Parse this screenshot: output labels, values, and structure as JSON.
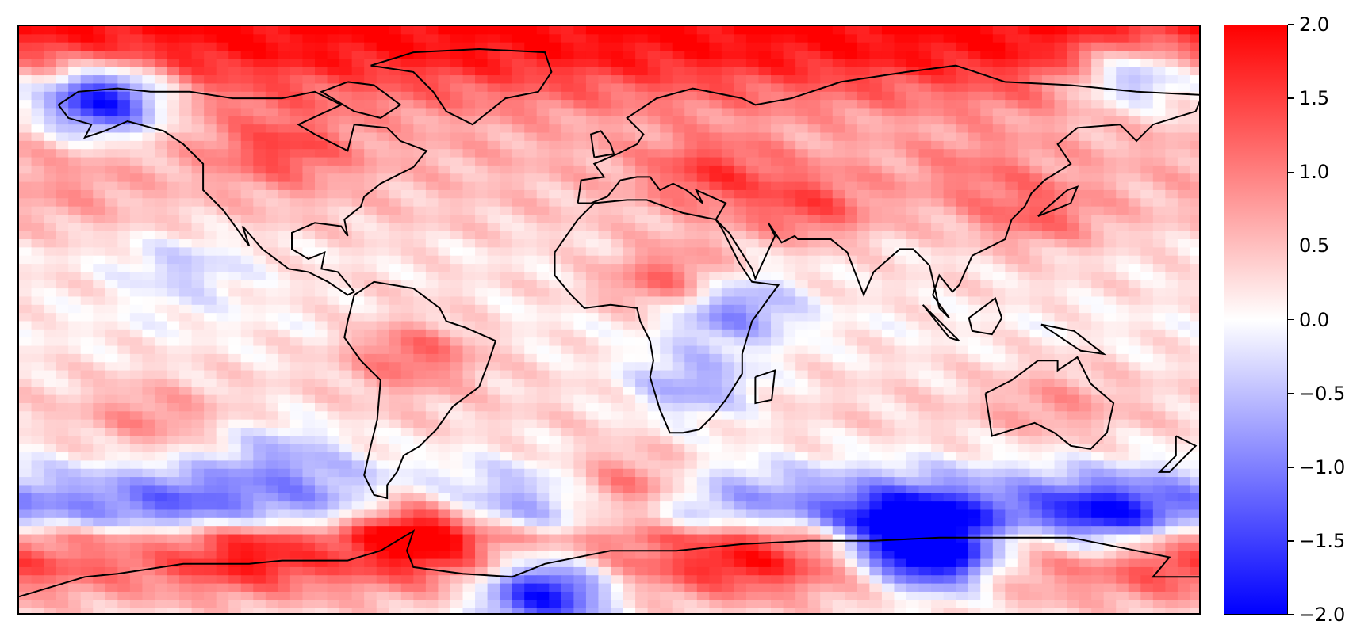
{
  "chart_data": {
    "type": "heatmap",
    "projection": "PlateCarree (global)",
    "grid": false,
    "legend": "colorbar-right",
    "colormap": {
      "name": "bwr",
      "low": "#0000ff",
      "mid": "#ffffff",
      "high": "#ff0000"
    },
    "vmin": -2.0,
    "vmax": 2.0,
    "colorbar_ticks": [
      2.0,
      1.5,
      1.0,
      0.5,
      0.0,
      -0.5,
      -1.0,
      -1.5,
      -2.0
    ],
    "colorbar_tick_labels": [
      "2.0",
      "1.5",
      "1.0",
      "0.5",
      "0.0",
      "−0.5",
      "−1.0",
      "−1.5",
      "−2.0"
    ],
    "coastline_color": "#000000",
    "zonal_profile": [
      {
        "lat": 90,
        "value": 2.0
      },
      {
        "lat": 80,
        "value": 1.8
      },
      {
        "lat": 72,
        "value": 1.3
      },
      {
        "lat": 60,
        "value": 0.7
      },
      {
        "lat": 50,
        "value": 0.6
      },
      {
        "lat": 40,
        "value": 0.5
      },
      {
        "lat": 30,
        "value": 0.4
      },
      {
        "lat": 20,
        "value": 0.2
      },
      {
        "lat": 10,
        "value": 0.25
      },
      {
        "lat": 0,
        "value": 0.1
      },
      {
        "lat": -10,
        "value": 0.2
      },
      {
        "lat": -20,
        "value": 0.3
      },
      {
        "lat": -30,
        "value": 0.35
      },
      {
        "lat": -40,
        "value": 0.1
      },
      {
        "lat": -48,
        "value": -0.5
      },
      {
        "lat": -55,
        "value": -0.9
      },
      {
        "lat": -60,
        "value": -0.6
      },
      {
        "lat": -66,
        "value": 0.8
      },
      {
        "lat": -75,
        "value": 1.2
      },
      {
        "lat": -85,
        "value": 0.6
      },
      {
        "lat": -90,
        "value": 0.3
      }
    ],
    "anomalies": [
      {
        "lon": -100,
        "lat": 52,
        "value": 1.5
      },
      {
        "lon": -155,
        "lat": 68,
        "value": -1.8
      },
      {
        "lon": -60,
        "lat": -10,
        "value": 1.2
      },
      {
        "lon": 25,
        "lat": -20,
        "value": -0.7
      },
      {
        "lon": 35,
        "lat": 5,
        "value": -1.2
      },
      {
        "lon": 30,
        "lat": 45,
        "value": 1.5
      },
      {
        "lon": 60,
        "lat": 35,
        "value": 1.4
      },
      {
        "lon": 20,
        "lat": 12,
        "value": 1.5
      },
      {
        "lon": 110,
        "lat": 45,
        "value": 1.0
      },
      {
        "lon": 130,
        "lat": 32,
        "value": 1.2
      },
      {
        "lon": 135,
        "lat": -25,
        "value": 0.8
      },
      {
        "lon": -130,
        "lat": 15,
        "value": -0.4
      },
      {
        "lon": -140,
        "lat": -30,
        "value": 0.9
      },
      {
        "lon": -165,
        "lat": 40,
        "value": 0.8
      },
      {
        "lon": -100,
        "lat": -40,
        "value": -0.6
      },
      {
        "lon": -130,
        "lat": -55,
        "value": -1.3
      },
      {
        "lon": 150,
        "lat": -62,
        "value": -1.6
      },
      {
        "lon": 90,
        "lat": -65,
        "value": -1.7
      },
      {
        "lon": -60,
        "lat": -62,
        "value": 2.0
      },
      {
        "lon": 40,
        "lat": -72,
        "value": 1.8
      },
      {
        "lon": -20,
        "lat": -82,
        "value": -1.8
      },
      {
        "lon": 100,
        "lat": -72,
        "value": -1.6
      },
      {
        "lon": -110,
        "lat": -70,
        "value": 1.8
      },
      {
        "lon": 170,
        "lat": -75,
        "value": 1.6
      },
      {
        "lon": 160,
        "lat": 75,
        "value": -0.4
      },
      {
        "lon": 5,
        "lat": -52,
        "value": 0.9
      }
    ]
  }
}
